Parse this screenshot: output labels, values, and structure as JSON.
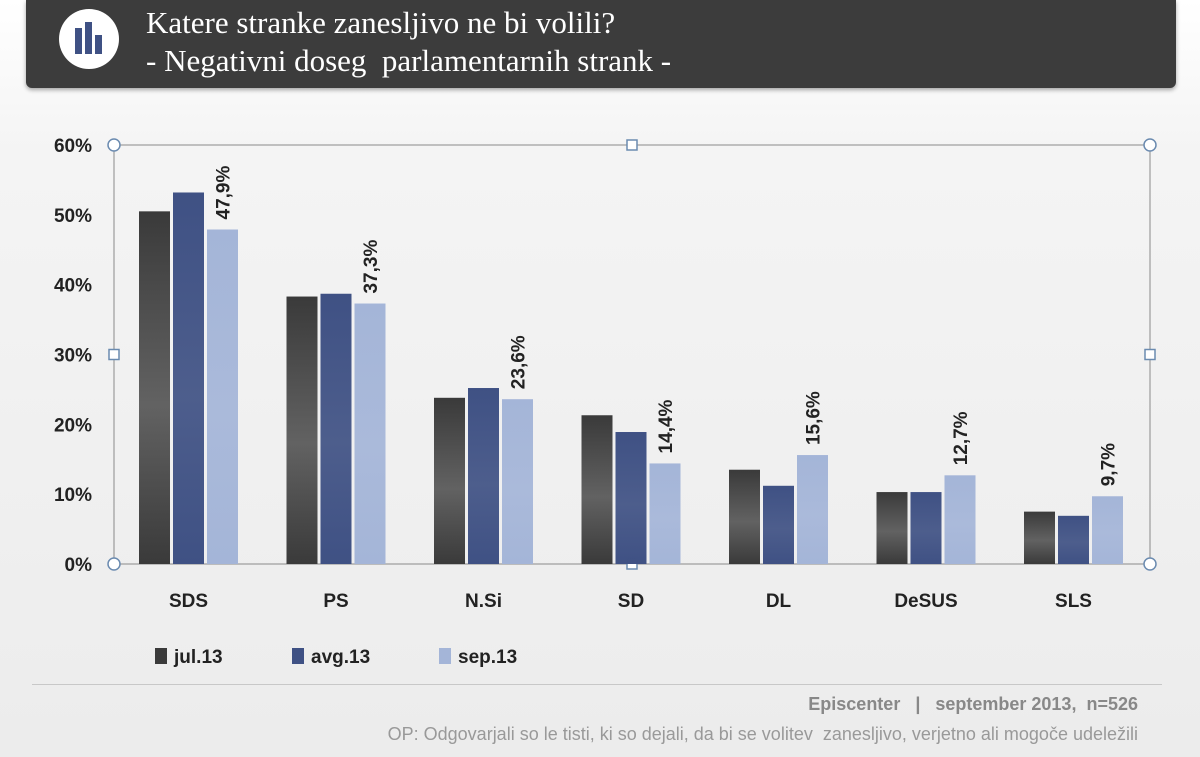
{
  "header": {
    "title_line1": "Katere stranke zanesljivo ne bi volili?",
    "title_line2": "- Negativni doseg  parlamentarnih strank -",
    "logo_icon": "bar-chart-icon"
  },
  "chart_data": {
    "type": "bar",
    "categories": [
      "SDS",
      "PS",
      "N.Si",
      "SD",
      "DL",
      "DeSUS",
      "SLS"
    ],
    "series": [
      {
        "name": "jul.13",
        "color": "#3a3a3a",
        "values": [
          50.5,
          38.3,
          23.8,
          21.3,
          13.5,
          10.3,
          7.5
        ]
      },
      {
        "name": "avg.13",
        "color": "#3f5184",
        "values": [
          53.2,
          38.7,
          25.2,
          18.9,
          11.2,
          10.3,
          6.9
        ]
      },
      {
        "name": "sep.13",
        "color": "#a4b5d8",
        "values": [
          47.9,
          37.3,
          23.6,
          14.4,
          15.6,
          12.7,
          9.7
        ]
      }
    ],
    "data_labels_series": "sep.13",
    "data_labels": [
      "47,9%",
      "37,3%",
      "23,6%",
      "14,4%",
      "15,6%",
      "12,7%",
      "9,7%"
    ],
    "y_ticks": [
      "0%",
      "10%",
      "20%",
      "30%",
      "40%",
      "50%",
      "60%"
    ],
    "ylim": [
      0,
      60
    ],
    "grid": false,
    "legend": "bottom-left"
  },
  "footer": {
    "source": "Episcenter   |   september 2013,  n=526",
    "note": "OP: Odgovarjali so le tisti, ki so dejali, da bi se volitev  zanesljivo, verjetno ali mogoče udeležili"
  }
}
